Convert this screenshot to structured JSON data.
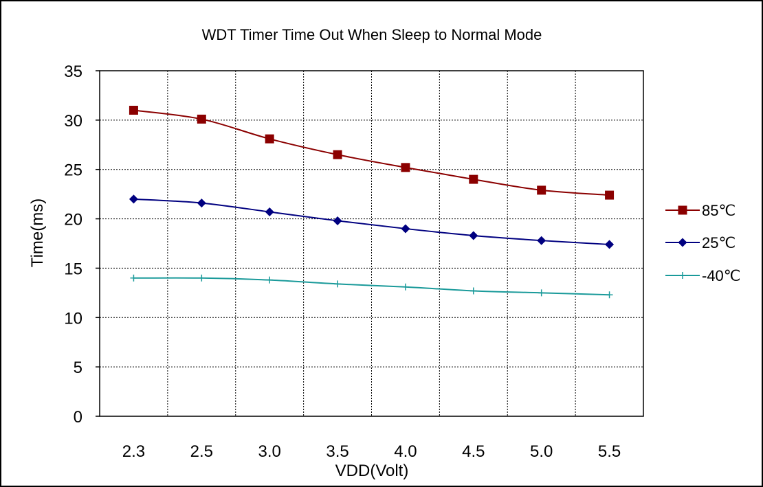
{
  "chart_data": {
    "type": "line",
    "title": "WDT Timer Time Out When Sleep to Normal Mode",
    "xlabel": "VDD(Volt)",
    "ylabel": "Time(ms)",
    "categories": [
      "2.3",
      "2.5",
      "3.0",
      "3.5",
      "4.0",
      "4.5",
      "5.0",
      "5.5"
    ],
    "ylim": [
      0,
      35
    ],
    "yticks": [
      0,
      5,
      10,
      15,
      20,
      25,
      30,
      35
    ],
    "grid": true,
    "legend_position": "right",
    "series": [
      {
        "name": "85℃",
        "color": "#8b0000",
        "marker": "square",
        "values": [
          31.0,
          30.1,
          28.1,
          26.5,
          25.2,
          24.0,
          22.9,
          22.4
        ]
      },
      {
        "name": "25℃",
        "color": "#000080",
        "marker": "diamond",
        "values": [
          22.0,
          21.6,
          20.7,
          19.8,
          19.0,
          18.3,
          17.8,
          17.4
        ]
      },
      {
        "name": "-40℃",
        "color": "#1a9a9a",
        "marker": "plus",
        "values": [
          14.0,
          14.0,
          13.8,
          13.4,
          13.1,
          12.7,
          12.5,
          12.3
        ]
      }
    ]
  }
}
